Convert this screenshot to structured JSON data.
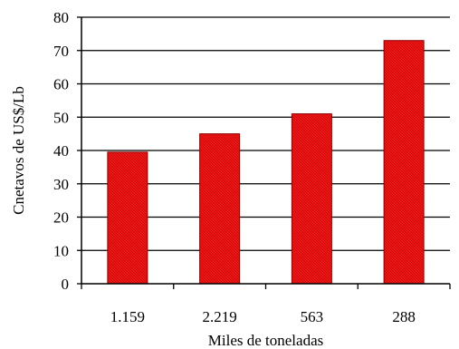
{
  "chart_data": {
    "type": "bar",
    "categories": [
      "1.159",
      "2.219",
      "563",
      "288"
    ],
    "values": [
      39.5,
      45,
      51,
      73
    ],
    "title": "",
    "xlabel": "Miles de toneladas",
    "ylabel": "Cnetavos de US$/Lb",
    "ylim": [
      0,
      80
    ],
    "yticks": [
      "0",
      "10",
      "20",
      "30",
      "40",
      "50",
      "60",
      "70",
      "80"
    ],
    "grid": true,
    "legend": "none",
    "bar_color": "#ee1111",
    "bar_edge_color": "#8b0000"
  }
}
